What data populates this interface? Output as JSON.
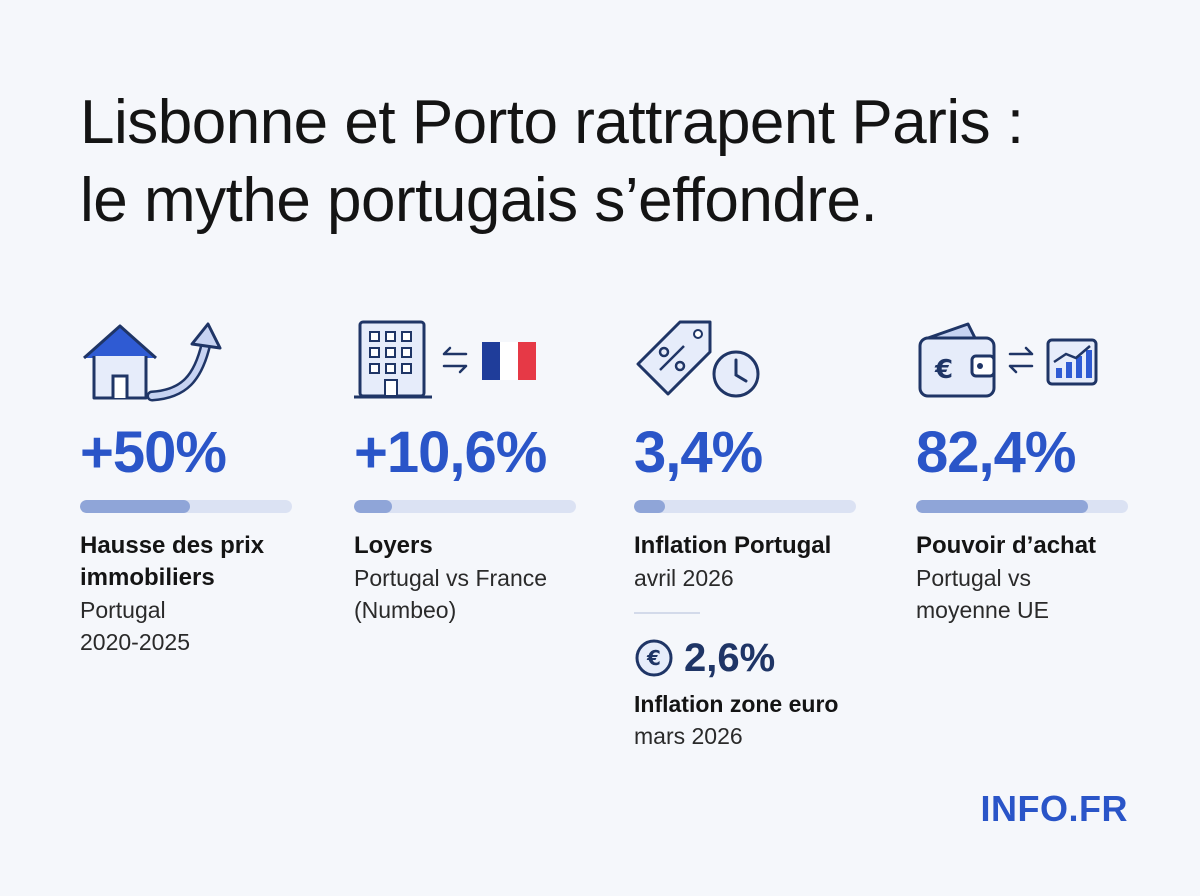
{
  "title": {
    "line1": "Lisbonne et Porto rattrapent Paris :",
    "line2": "le mythe portugais s’effondre."
  },
  "stats": [
    {
      "value": "+50%",
      "bar_fill": 0.52,
      "label_line1": "Hausse des prix",
      "label_line2": "immobiliers",
      "sub_line1": "Portugal",
      "sub_line2": "2020-2025",
      "icon": "house-rising-arrow-icon"
    },
    {
      "value": "+10,6%",
      "bar_fill": 0.17,
      "label_line1": "Loyers",
      "sub_line1": "Portugal vs France",
      "sub_line2": "(Numbeo)",
      "icon": "building-vs-france-flag-icon"
    },
    {
      "value": "3,4%",
      "bar_fill": 0.14,
      "label_line1": "Inflation Portugal",
      "sub_line1": "avril 2026",
      "icon": "price-tag-clock-icon"
    },
    {
      "value": "82,4%",
      "bar_fill": 0.81,
      "label_line1": "Pouvoir d’achat",
      "sub_line1": "Portugal vs",
      "sub_line2": "moyenne UE",
      "icon": "wallet-vs-chart-icon"
    }
  ],
  "eurozone": {
    "value": "2,6%",
    "label": "Inflation zone euro",
    "sub": "mars 2026",
    "icon": "euro-coin-icon"
  },
  "brand": "INFO.FR",
  "colors": {
    "accent": "#2a55c8",
    "bar_track": "#dbe2f3",
    "bar_fill": "#8fa5d8",
    "background": "#f5f7fb"
  }
}
